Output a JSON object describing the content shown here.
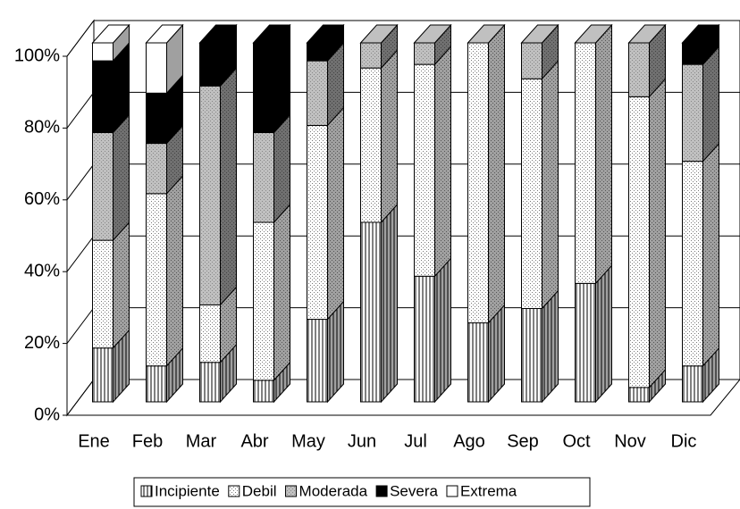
{
  "chart_data": {
    "type": "bar",
    "stacked": true,
    "categories": [
      "Ene",
      "Feb",
      "Mar",
      "Abr",
      "May",
      "Jun",
      "Jul",
      "Ago",
      "Sep",
      "Oct",
      "Nov",
      "Dic"
    ],
    "series": [
      {
        "name": "Incipiente",
        "color": "#ffffff",
        "pattern": "vertical-lines",
        "values": [
          15,
          10,
          11,
          6,
          23,
          50,
          35,
          22,
          26,
          33,
          4,
          10
        ]
      },
      {
        "name": "Debil",
        "color": "#ffffff",
        "pattern": "dots",
        "values": [
          30,
          48,
          16,
          44,
          54,
          43,
          59,
          78,
          64,
          67,
          81,
          57
        ]
      },
      {
        "name": "Moderada",
        "color": "#c0c0c0",
        "pattern": "dots",
        "values": [
          30,
          14,
          61,
          25,
          18,
          7,
          6,
          0,
          10,
          0,
          15,
          27
        ]
      },
      {
        "name": "Severa",
        "color": "#000000",
        "values": [
          20,
          14,
          12,
          25,
          5,
          0,
          0,
          0,
          0,
          0,
          0,
          6
        ]
      },
      {
        "name": "Extrema",
        "color": "#ffffff",
        "values": [
          5,
          14,
          0,
          0,
          0,
          0,
          0,
          0,
          0,
          0,
          0,
          0
        ]
      }
    ],
    "ylim": [
      0,
      100
    ],
    "yticks": [
      {
        "value": 0,
        "label": "0%"
      },
      {
        "value": 20,
        "label": "20%"
      },
      {
        "value": 40,
        "label": "40%"
      },
      {
        "value": 60,
        "label": "60%"
      },
      {
        "value": 80,
        "label": "80%"
      },
      {
        "value": 100,
        "label": "100%"
      }
    ],
    "grid": true,
    "legend": "bottom"
  }
}
